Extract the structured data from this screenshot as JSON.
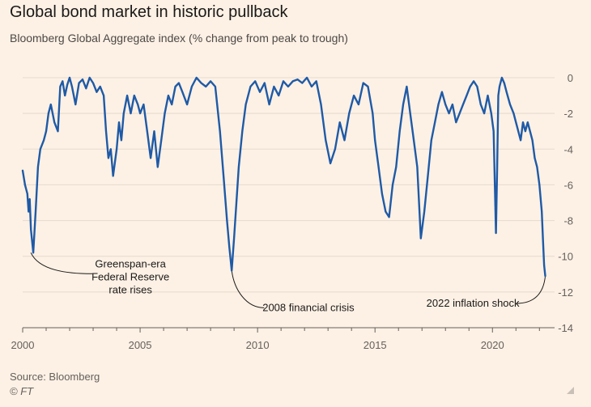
{
  "title": "Global bond market in historic pullback",
  "subtitle": "Bloomberg Global Aggregate index (% change from peak to trough)",
  "source": "Source: Bloomberg",
  "credit": "© FT",
  "colors": {
    "line": "#1f5aa6",
    "background": "#fdf1e5",
    "grid": "#e6d9ce"
  },
  "chart_data": {
    "type": "line",
    "title": "Global bond market in historic pullback",
    "subtitle": "Bloomberg Global Aggregate index (% change from peak to trough)",
    "xlabel": "",
    "ylabel": "",
    "xlim": [
      2000,
      2022.3
    ],
    "ylim": [
      -14,
      0
    ],
    "yticks": [
      0,
      -2,
      -4,
      -6,
      -8,
      -10,
      -12,
      -14
    ],
    "ytick_labels": [
      "0",
      "-2",
      "-4",
      "-6",
      "-8",
      "-10",
      "-12",
      "-14"
    ],
    "xticks": [
      2000,
      2005,
      2010,
      2015,
      2020
    ],
    "xtick_labels": [
      "2000",
      "2005",
      "2010",
      "2015",
      "2020"
    ],
    "grid": "horizontal",
    "series": [
      {
        "name": "Bloomberg Global Aggregate index drawdown",
        "x": [
          2000.0,
          2000.1,
          2000.2,
          2000.25,
          2000.3,
          2000.35,
          2000.45,
          2000.55,
          2000.65,
          2000.75,
          2000.9,
          2001.0,
          2001.1,
          2001.2,
          2001.35,
          2001.5,
          2001.6,
          2001.7,
          2001.8,
          2001.9,
          2002.0,
          2002.1,
          2002.25,
          2002.4,
          2002.55,
          2002.7,
          2002.85,
          2003.0,
          2003.15,
          2003.3,
          2003.45,
          2003.55,
          2003.65,
          2003.75,
          2003.85,
          2004.0,
          2004.1,
          2004.2,
          2004.3,
          2004.45,
          2004.6,
          2004.75,
          2004.9,
          2005.0,
          2005.15,
          2005.3,
          2005.45,
          2005.6,
          2005.75,
          2005.9,
          2006.05,
          2006.2,
          2006.35,
          2006.5,
          2006.65,
          2006.8,
          2007.0,
          2007.2,
          2007.4,
          2007.6,
          2007.8,
          2008.0,
          2008.2,
          2008.4,
          2008.55,
          2008.7,
          2008.8,
          2008.9,
          2009.0,
          2009.1,
          2009.2,
          2009.35,
          2009.5,
          2009.7,
          2009.9,
          2010.1,
          2010.3,
          2010.5,
          2010.7,
          2010.9,
          2011.1,
          2011.3,
          2011.5,
          2011.7,
          2011.9,
          2012.1,
          2012.3,
          2012.5,
          2012.7,
          2012.9,
          2013.1,
          2013.3,
          2013.5,
          2013.7,
          2013.9,
          2014.1,
          2014.3,
          2014.5,
          2014.7,
          2014.9,
          2015.0,
          2015.15,
          2015.3,
          2015.45,
          2015.6,
          2015.75,
          2015.9,
          2016.05,
          2016.2,
          2016.35,
          2016.5,
          2016.65,
          2016.8,
          2016.95,
          2017.1,
          2017.25,
          2017.4,
          2017.55,
          2017.7,
          2017.85,
          2018.0,
          2018.15,
          2018.3,
          2018.45,
          2018.6,
          2018.75,
          2018.9,
          2019.05,
          2019.2,
          2019.35,
          2019.5,
          2019.65,
          2019.8,
          2019.95,
          2020.05,
          2020.15,
          2020.2,
          2020.25,
          2020.3,
          2020.4,
          2020.5,
          2020.6,
          2020.75,
          2020.9,
          2021.0,
          2021.1,
          2021.2,
          2021.3,
          2021.4,
          2021.5,
          2021.6,
          2021.7,
          2021.8,
          2021.9,
          2022.0,
          2022.1,
          2022.15,
          2022.2,
          2022.25
        ],
        "values": [
          -5.2,
          -6.0,
          -6.5,
          -7.5,
          -6.8,
          -8.5,
          -9.8,
          -7.5,
          -5.0,
          -4.0,
          -3.5,
          -3.0,
          -2.0,
          -1.5,
          -2.5,
          -3.0,
          -0.5,
          -0.2,
          -1.0,
          -0.4,
          0.0,
          -0.5,
          -1.5,
          -0.3,
          -0.1,
          -0.6,
          0.0,
          -0.3,
          -0.8,
          -0.5,
          -1.0,
          -3.0,
          -4.5,
          -4.0,
          -5.5,
          -4.0,
          -2.5,
          -3.5,
          -2.0,
          -1.0,
          -2.0,
          -1.0,
          -1.5,
          -2.0,
          -1.5,
          -3.0,
          -4.5,
          -3.0,
          -5.0,
          -3.5,
          -2.0,
          -1.0,
          -1.5,
          -0.5,
          -0.3,
          -0.8,
          -1.5,
          -0.5,
          0.0,
          -0.3,
          -0.5,
          -0.2,
          -0.5,
          -3.0,
          -5.5,
          -8.0,
          -9.5,
          -10.8,
          -9.0,
          -7.0,
          -5.0,
          -3.0,
          -1.5,
          -0.5,
          -0.2,
          -0.8,
          -0.3,
          -1.5,
          -0.5,
          -1.0,
          -0.2,
          -0.5,
          -0.2,
          -0.1,
          -0.3,
          0.0,
          -0.5,
          -0.2,
          -1.5,
          -3.5,
          -4.8,
          -4.0,
          -2.5,
          -3.5,
          -2.0,
          -1.0,
          -1.5,
          -0.3,
          -0.5,
          -2.0,
          -3.5,
          -5.0,
          -6.5,
          -7.5,
          -7.8,
          -6.0,
          -5.0,
          -3.0,
          -1.5,
          -0.5,
          -2.0,
          -3.5,
          -5.0,
          -9.0,
          -7.5,
          -5.5,
          -3.5,
          -2.5,
          -1.5,
          -0.8,
          -1.5,
          -2.0,
          -1.5,
          -2.5,
          -2.0,
          -1.5,
          -1.0,
          -0.5,
          -0.2,
          -0.5,
          -1.5,
          -2.0,
          -1.0,
          -2.0,
          -3.0,
          -8.7,
          -5.0,
          -1.0,
          -0.5,
          0.0,
          -0.3,
          -0.8,
          -1.5,
          -2.0,
          -2.5,
          -3.0,
          -3.5,
          -2.5,
          -3.0,
          -2.5,
          -3.0,
          -3.5,
          -4.5,
          -5.0,
          -6.0,
          -7.5,
          -9.0,
          -10.5,
          -11.1
        ]
      }
    ],
    "annotations": [
      {
        "lines": [
          "Greenspan-era",
          "Federal Reserve",
          "rate rises"
        ],
        "x": 2000.35,
        "y": -9.8
      },
      {
        "lines": [
          "2008 financial crisis"
        ],
        "x": 2008.9,
        "y": -10.8
      },
      {
        "lines": [
          "2022 inflation shock"
        ],
        "x": 2022.25,
        "y": -11.1
      }
    ]
  }
}
